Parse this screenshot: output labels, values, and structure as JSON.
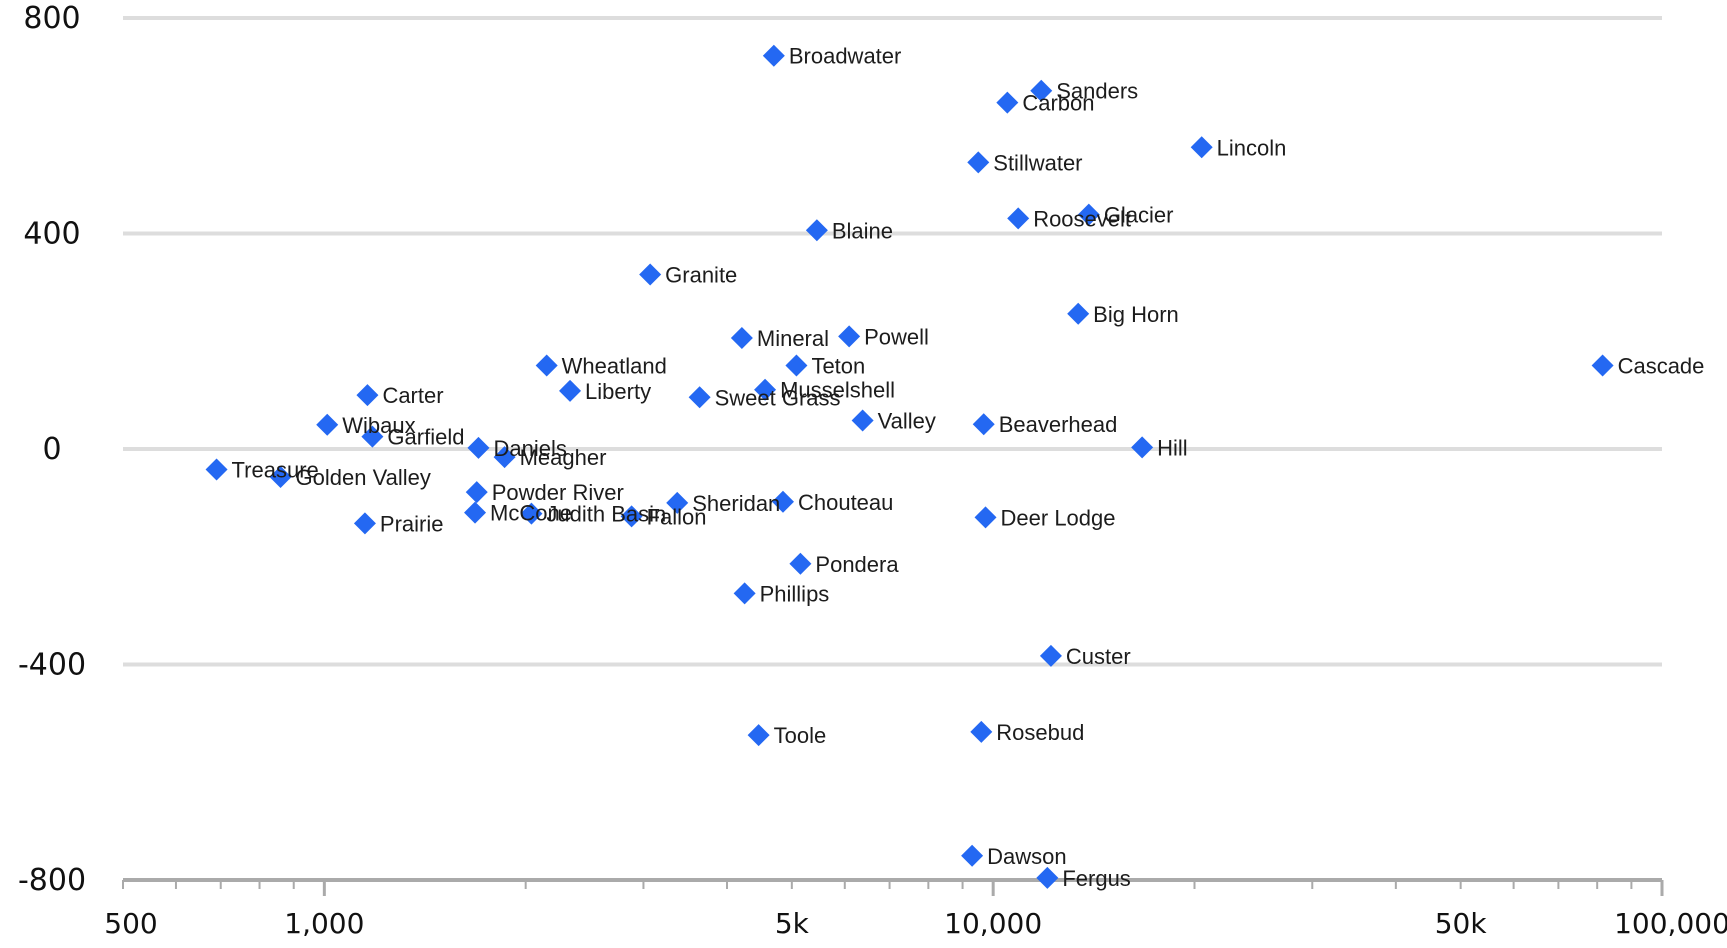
{
  "chart_data": {
    "type": "scatter",
    "title": "",
    "xlabel": "",
    "ylabel": "",
    "x_scale": "log",
    "xlim": [
      500,
      100000
    ],
    "ylim": [
      -800,
      800
    ],
    "grid": true,
    "marker": "diamond",
    "marker_color": "#2468f2",
    "gridline_color": "#dddddd",
    "axis_color": "#aaaaaa",
    "yticks": [
      {
        "value": 800,
        "label": "800"
      },
      {
        "value": 400,
        "label": "400"
      },
      {
        "value": 0,
        "label": "0"
      },
      {
        "value": -400,
        "label": "-400"
      },
      {
        "value": -800,
        "label": "-800"
      }
    ],
    "xticks": [
      {
        "value": 500,
        "label": "500"
      },
      {
        "value": 1000,
        "label": "1,000"
      },
      {
        "value": 5000,
        "label": "5k"
      },
      {
        "value": 10000,
        "label": "10,000"
      },
      {
        "value": 50000,
        "label": "50k"
      },
      {
        "value": 100000,
        "label": "100,000"
      }
    ],
    "points": [
      {
        "name": "Broadwater",
        "x": 4700,
        "y": 730
      },
      {
        "name": "Sanders",
        "x": 11800,
        "y": 665
      },
      {
        "name": "Carbon",
        "x": 10500,
        "y": 643
      },
      {
        "name": "Lincoln",
        "x": 20500,
        "y": 560
      },
      {
        "name": "Stillwater",
        "x": 9500,
        "y": 532
      },
      {
        "name": "Glacier",
        "x": 13900,
        "y": 435
      },
      {
        "name": "Roosevelt",
        "x": 10900,
        "y": 428
      },
      {
        "name": "Blaine",
        "x": 5450,
        "y": 406
      },
      {
        "name": "Granite",
        "x": 3070,
        "y": 324
      },
      {
        "name": "Big Horn",
        "x": 13400,
        "y": 251
      },
      {
        "name": "Mineral",
        "x": 4210,
        "y": 206
      },
      {
        "name": "Powell",
        "x": 6090,
        "y": 209
      },
      {
        "name": "Wheatland",
        "x": 2150,
        "y": 155
      },
      {
        "name": "Teton",
        "x": 5080,
        "y": 155
      },
      {
        "name": "Cascade",
        "x": 81500,
        "y": 155
      },
      {
        "name": "Liberty",
        "x": 2330,
        "y": 108
      },
      {
        "name": "Musselshell",
        "x": 4560,
        "y": 110
      },
      {
        "name": "Carter",
        "x": 1160,
        "y": 100
      },
      {
        "name": "Sweet Grass",
        "x": 3640,
        "y": 96
      },
      {
        "name": "Valley",
        "x": 6380,
        "y": 53
      },
      {
        "name": "Beaverhead",
        "x": 9680,
        "y": 46
      },
      {
        "name": "Wibaux",
        "x": 1010,
        "y": 45
      },
      {
        "name": "Garfield",
        "x": 1180,
        "y": 23
      },
      {
        "name": "Daniels",
        "x": 1700,
        "y": 2
      },
      {
        "name": "Hill",
        "x": 16700,
        "y": 3
      },
      {
        "name": "Meagher",
        "x": 1860,
        "y": -15
      },
      {
        "name": "Treasure",
        "x": 690,
        "y": -38
      },
      {
        "name": "Golden Valley",
        "x": 860,
        "y": -52
      },
      {
        "name": "Powder River",
        "x": 1690,
        "y": -80
      },
      {
        "name": "Chouteau",
        "x": 4850,
        "y": -98
      },
      {
        "name": "Sheridan",
        "x": 3370,
        "y": -100
      },
      {
        "name": "McCone",
        "x": 1680,
        "y": -118
      },
      {
        "name": "Judith Basin",
        "x": 2040,
        "y": -120
      },
      {
        "name": "Fallon",
        "x": 2880,
        "y": -125
      },
      {
        "name": "Deer Lodge",
        "x": 9740,
        "y": -127
      },
      {
        "name": "Prairie",
        "x": 1150,
        "y": -138
      },
      {
        "name": "Pondera",
        "x": 5150,
        "y": -213
      },
      {
        "name": "Phillips",
        "x": 4250,
        "y": -268
      },
      {
        "name": "Custer",
        "x": 12200,
        "y": -384
      },
      {
        "name": "Rosebud",
        "x": 9600,
        "y": -525
      },
      {
        "name": "Toole",
        "x": 4460,
        "y": -531
      },
      {
        "name": "Dawson",
        "x": 9300,
        "y": -755
      },
      {
        "name": "Fergus",
        "x": 12050,
        "y": -796
      }
    ]
  }
}
